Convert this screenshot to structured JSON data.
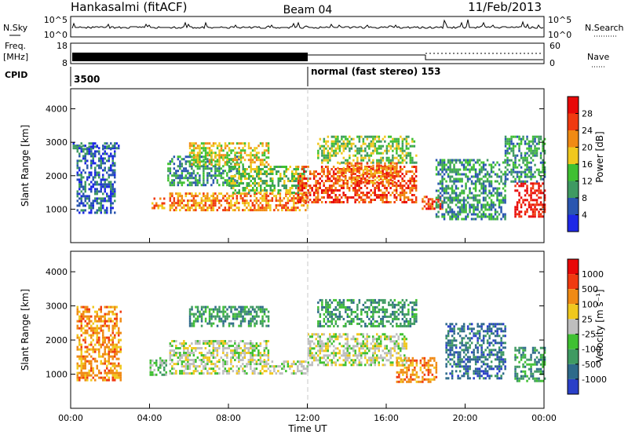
{
  "header": {
    "station": "Hankasalmi (fitACF)",
    "beam": "Beam 04",
    "date": "11/Feb/2013"
  },
  "aux_panels": {
    "nsky_label": "N.Sky",
    "nsky_ticks": [
      "10^5",
      "10^0"
    ],
    "nsearch_label": "N.Search",
    "freq_label_line1": "Freq.",
    "freq_label_line2": "[MHz]",
    "freq_ticks": [
      "18",
      "8"
    ],
    "nave_label": "Nave",
    "nave_ticks": [
      "60",
      "0"
    ],
    "cpid_label": "CPID",
    "cpid_segments": [
      {
        "label": "3500",
        "start": "00:00"
      },
      {
        "label": "normal (fast stereo) 153",
        "start": "12:00"
      }
    ]
  },
  "chart_data": [
    {
      "type": "heatmap",
      "title": "",
      "xlabel": "",
      "ylabel": "Slant Range [km]",
      "xlim": [
        0,
        24
      ],
      "ylim": [
        0,
        4600
      ],
      "yticks": [
        "1000",
        "2000",
        "3000",
        "4000"
      ],
      "colorbar": {
        "label": "Power [dB]",
        "ticks": [
          "4",
          "8",
          "12",
          "16",
          "20",
          "24",
          "28"
        ],
        "range": [
          0,
          30
        ],
        "colors": [
          "#1e28e6",
          "#2a56b0",
          "#3f9a62",
          "#3fc032",
          "#f0c81e",
          "#f08a14",
          "#f03a10",
          "#e80808"
        ]
      },
      "regions": [
        {
          "t0": 0.1,
          "t1": 2.5,
          "r0": 2850,
          "r1": 3000,
          "value": 6
        },
        {
          "t0": 0.3,
          "t1": 2.2,
          "r0": 900,
          "r1": 2900,
          "value": 6
        },
        {
          "t0": 4.1,
          "t1": 4.7,
          "r0": 1050,
          "r1": 1350,
          "value": 22
        },
        {
          "t0": 4.9,
          "t1": 8.5,
          "r0": 1700,
          "r1": 2600,
          "value": 10
        },
        {
          "t0": 5.0,
          "t1": 12.0,
          "r0": 950,
          "r1": 1500,
          "value": 22
        },
        {
          "t0": 6.0,
          "t1": 10.0,
          "r0": 2300,
          "r1": 3000,
          "value": 18
        },
        {
          "t0": 8.0,
          "t1": 12.0,
          "r0": 1500,
          "r1": 2300,
          "value": 12
        },
        {
          "t0": 11.5,
          "t1": 17.5,
          "r0": 1200,
          "r1": 2300,
          "value": 24
        },
        {
          "t0": 12.5,
          "t1": 17.5,
          "r0": 2400,
          "r1": 3200,
          "value": 12
        },
        {
          "t0": 13.5,
          "t1": 16.5,
          "r0": 1800,
          "r1": 2400,
          "value": 20
        },
        {
          "t0": 17.8,
          "t1": 18.8,
          "r0": 1000,
          "r1": 1400,
          "value": 26
        },
        {
          "t0": 18.5,
          "t1": 22.0,
          "r0": 700,
          "r1": 2500,
          "value": 9
        },
        {
          "t0": 22.5,
          "t1": 24.0,
          "r0": 800,
          "r1": 1800,
          "value": 28
        },
        {
          "t0": 22.0,
          "t1": 24.0,
          "r0": 1800,
          "r1": 3200,
          "value": 8
        }
      ]
    },
    {
      "type": "heatmap",
      "title": "",
      "xlabel": "Time UT",
      "ylabel": "Slant Range [km]",
      "xlim": [
        0,
        24
      ],
      "ylim": [
        0,
        4600
      ],
      "xticks": [
        "00:00",
        "04:00",
        "08:00",
        "12:00",
        "16:00",
        "20:00",
        "00:00"
      ],
      "yticks": [
        "1000",
        "2000",
        "3000",
        "4000"
      ],
      "colorbar": {
        "label": "Velocity [m s⁻¹]",
        "ticks": [
          "1000",
          "500",
          "100",
          "25",
          "-25",
          "-100",
          "-500",
          "-1000"
        ],
        "colors": [
          "#2a40c8",
          "#2e6a8a",
          "#3f9a62",
          "#3fc032",
          "#bebebe",
          "#f0c81e",
          "#f08a14",
          "#f03a10",
          "#e80808"
        ]
      },
      "regions": [
        {
          "t0": 0.3,
          "t1": 2.5,
          "r0": 800,
          "r1": 3000,
          "value": 6
        },
        {
          "t0": 4.0,
          "t1": 4.8,
          "r0": 1000,
          "r1": 1500,
          "value": 3
        },
        {
          "t0": 5.0,
          "t1": 12.0,
          "r0": 1000,
          "r1": 1400,
          "value": 4
        },
        {
          "t0": 5.0,
          "t1": 10.0,
          "r0": 1400,
          "r1": 2000,
          "value": 4
        },
        {
          "t0": 6.0,
          "t1": 10.0,
          "r0": 2400,
          "r1": 3000,
          "value": 2
        },
        {
          "t0": 12.0,
          "t1": 17.0,
          "r0": 1300,
          "r1": 2200,
          "value": 4
        },
        {
          "t0": 12.5,
          "t1": 17.5,
          "r0": 2400,
          "r1": 3200,
          "value": 2
        },
        {
          "t0": 16.5,
          "t1": 18.5,
          "r0": 800,
          "r1": 1500,
          "value": 6
        },
        {
          "t0": 19.0,
          "t1": 22.0,
          "r0": 900,
          "r1": 2500,
          "value": 1
        },
        {
          "t0": 22.5,
          "t1": 24.0,
          "r0": 800,
          "r1": 1800,
          "value": 2
        }
      ]
    }
  ]
}
